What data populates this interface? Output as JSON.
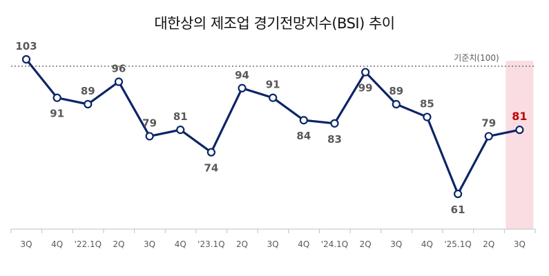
{
  "chart_data": {
    "type": "line",
    "title": "대한상의 제조업 경기전망지수(BSI) 추이",
    "categories": [
      "3Q",
      "4Q",
      "'22.1Q",
      "2Q",
      "3Q",
      "4Q",
      "'23.1Q",
      "2Q",
      "3Q",
      "4Q",
      "'24.1Q",
      "2Q",
      "3Q",
      "4Q",
      "'25.1Q",
      "2Q",
      "3Q"
    ],
    "series": [
      {
        "name": "BSI",
        "values": [
          103,
          91,
          89,
          96,
          79,
          81,
          74,
          94,
          91,
          84,
          83,
          99,
          89,
          85,
          61,
          79,
          81
        ]
      }
    ],
    "reference_line": {
      "label": "기준치(100)",
      "value": 100
    },
    "highlight_category_index": 16,
    "xlabel": "",
    "ylabel": "",
    "ylim": [
      50,
      105
    ],
    "colors": {
      "line": "#0b2566",
      "highlight": "#f9dde3",
      "highlight_label": "#c00000",
      "label": "#595959"
    }
  }
}
